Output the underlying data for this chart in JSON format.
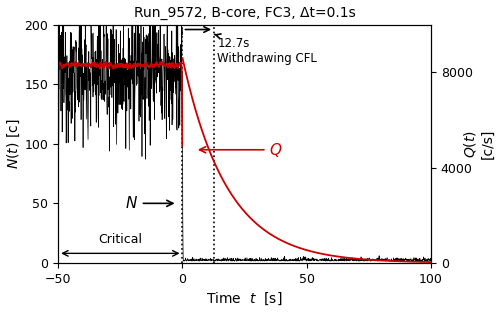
{
  "title": "Run_9572, B-core, FC3, Δt=0.1s",
  "xlabel": "Time  $t$  [s]",
  "ylabel_left": "$N(t)$ [c]",
  "ylabel_right": "$Q(t)$\n[c/s]",
  "xlim": [
    -50,
    100
  ],
  "ylim_left": [
    0,
    200
  ],
  "ylim_right": [
    0,
    10000
  ],
  "yticks_left": [
    0,
    50,
    100,
    150,
    200
  ],
  "yticks_right": [
    0,
    4000,
    8000
  ],
  "xticks": [
    -50,
    0,
    50,
    100
  ],
  "N_critical_mean": 160,
  "N_noise_amp": 25,
  "Q_flat_value": 8300,
  "Q_noise_amp": 150,
  "Q_peak": 8600,
  "Q_decay_tau": 18,
  "line_color_N": "#000000",
  "line_color_Q": "#cc0000",
  "background_color": "#ffffff",
  "dpi": 100
}
